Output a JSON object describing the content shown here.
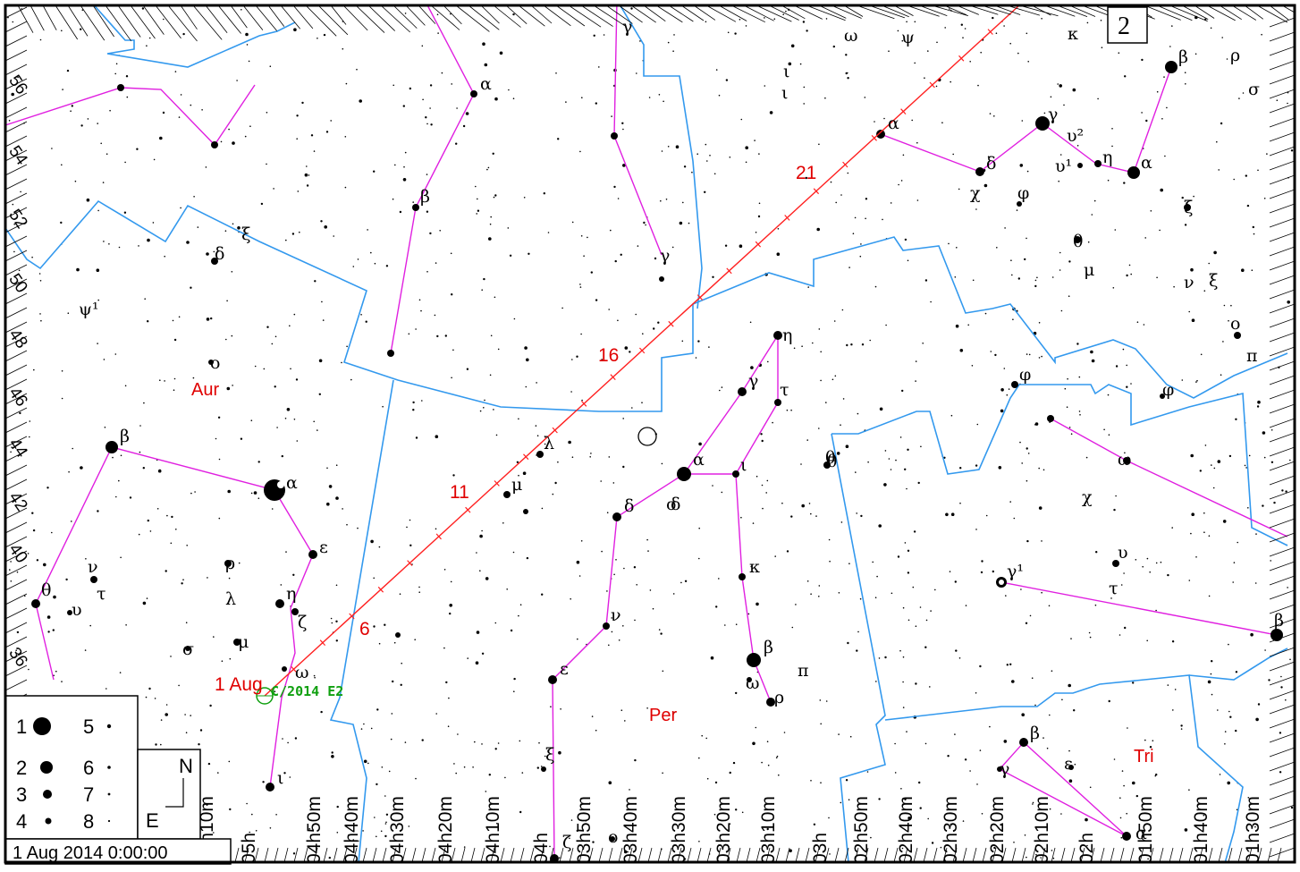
{
  "page_label": "2",
  "datetime_label": "1 Aug 2014  0:00:00",
  "compass": {
    "north": "N",
    "east": "E"
  },
  "legend": {
    "magnitudes": [
      "1",
      "2",
      "3",
      "4",
      "5",
      "6",
      "7",
      "8"
    ]
  },
  "constellations": [
    "Aur",
    "Per",
    "Tri"
  ],
  "comet": {
    "name": "C/2014 E2",
    "start_label": "1 Aug"
  },
  "path_day_labels": [
    "6",
    "11",
    "16",
    "21"
  ],
  "ra_labels": [
    "05h10m",
    "05h",
    "04h50m",
    "04h40m",
    "04h30m",
    "04h20m",
    "04h10m",
    "04h",
    "03h50m",
    "03h40m",
    "03h30m",
    "03h20m",
    "03h10m",
    "03h",
    "02h50m",
    "02h40m",
    "02h30m",
    "02h20m",
    "02h10m",
    "02h",
    "01h50m",
    "01h40m",
    "01h30m"
  ],
  "dec_labels": [
    "56",
    "54",
    "52",
    "50",
    "48",
    "46",
    "44",
    "42",
    "40",
    "36"
  ],
  "star_labels": [
    "β",
    "α",
    "ε",
    "η",
    "ζ",
    "ω",
    "ι",
    "θ",
    "ν",
    "υ",
    "τ",
    "ρ",
    "λ",
    "μ",
    "σ",
    "δ",
    "ξ",
    "ψ¹",
    "ο",
    "α",
    "β",
    "γ",
    "δ",
    "α",
    "ι",
    "η",
    "γ",
    "τ",
    "μ",
    "λ",
    "θ",
    "ν",
    "ε",
    "ξ",
    "ζ",
    "ο",
    "κ",
    "β",
    "ω",
    "ρ",
    "π",
    "σ",
    "γ",
    "ι",
    "ι",
    "ω",
    "ψ",
    "κ",
    "α",
    "δ",
    "χ",
    "φ",
    "γ",
    "υ²",
    "υ¹",
    "η",
    "α",
    "β",
    "ρ",
    "σ",
    "ξ",
    "θ",
    "μ",
    "ν",
    "ξ",
    "ο",
    "φ",
    "φ",
    "π",
    "θ",
    "ω",
    "χ",
    "υ",
    "τ",
    "γ¹",
    "β",
    "β",
    "ε",
    "γ",
    "α",
    "δ"
  ]
}
